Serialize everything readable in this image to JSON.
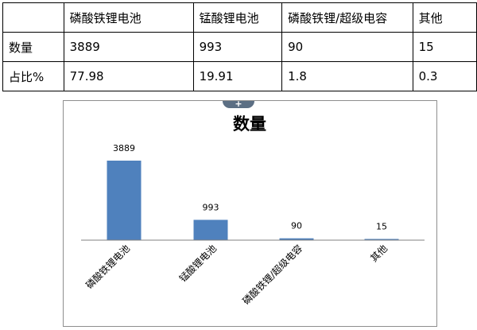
{
  "table": {
    "header": [
      "",
      "磷酸铁锂电池",
      "锰酸锂电池",
      "磷酸铁锂/超级电容",
      "其他"
    ],
    "rows": [
      [
        "数量",
        "3889",
        "993",
        "90",
        "15"
      ],
      [
        "占比%",
        "77.98",
        "19.91",
        "1.8",
        "0.3"
      ]
    ]
  },
  "chart_data": {
    "type": "bar",
    "title": "数量",
    "categories": [
      "磷酸铁锂电池",
      "锰酸锂电池",
      "磷酸铁锂/超级电容",
      "其他"
    ],
    "values": [
      3889,
      993,
      90,
      15
    ],
    "data_labels": [
      "3889",
      "993",
      "90",
      "15"
    ],
    "bar_color": "#4f81bd",
    "xlabel": "",
    "ylabel": "",
    "grid": false,
    "legend": "none"
  },
  "collapse_tab": {
    "glyph": "+"
  }
}
